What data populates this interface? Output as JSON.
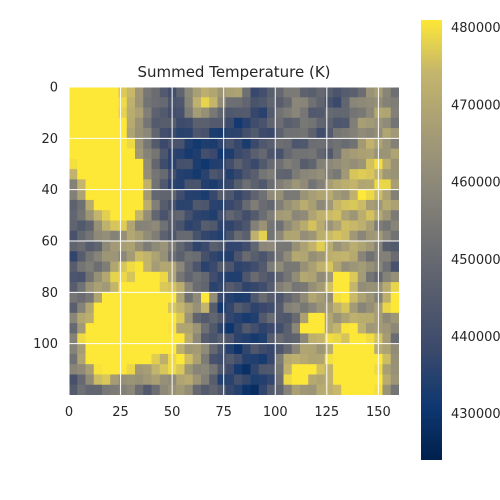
{
  "chart_data": {
    "type": "heatmap",
    "title": "Summed Temperature (K)",
    "xlabel": "",
    "ylabel": "",
    "x_range": [
      0,
      160
    ],
    "y_range": [
      0,
      120
    ],
    "y_axis_inverted": true,
    "x_ticks": [
      "0",
      "25",
      "50",
      "75",
      "100",
      "125",
      "150"
    ],
    "y_ticks": [
      "0",
      "20",
      "40",
      "60",
      "80",
      "100"
    ],
    "grid": true,
    "colormap": "cividis",
    "colorbar": {
      "range": [
        424000,
        481000
      ],
      "ticks": [
        "430000",
        "440000",
        "450000",
        "460000",
        "470000",
        "480000"
      ]
    },
    "colors": {
      "low": "#00204d",
      "mid": "#7c7b78",
      "high": "#fde737"
    }
  }
}
